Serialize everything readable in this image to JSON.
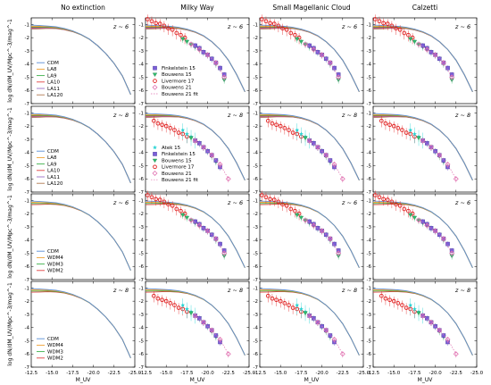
{
  "figure": {
    "columns": [
      "No extinction",
      "Milky Way",
      "Small Magellanic Cloud",
      "Calzetti"
    ],
    "row_redshift_labels": [
      "z ~ 6",
      "z ~ 8",
      "z ~ 6",
      "z ~ 8"
    ],
    "x_axis_label": "M_UV",
    "x_ticks": [
      "-12.5",
      "-15.0",
      "-17.5",
      "-20.0",
      "-22.5",
      "-25.0"
    ],
    "y_axis_label": "log dN/dM_UV/Mpc^-3/mag^-1",
    "y_ticks": [
      "-1",
      "-2",
      "-3",
      "-4",
      "-5",
      "-6",
      "-7"
    ]
  },
  "legends": {
    "lya_models": [
      "CDM",
      "LA8",
      "LA9",
      "LA10",
      "LA11",
      "LA120"
    ],
    "wdm_models": [
      "CDM",
      "WDM4",
      "WDM3",
      "WDM2"
    ],
    "obs_z6": [
      "Finkelstein 15",
      "Bouwens 15",
      "Livermore 17",
      "Bouwens 21",
      "Bouwens 21 fit"
    ],
    "obs_z8": [
      "Atek 15",
      "Finkelstein 15",
      "Bouwens 15",
      "Livermore 17",
      "Bouwens 21",
      "Bouwens 21 fit"
    ]
  },
  "colors": {
    "CDM": "#5b8fd6",
    "LA8": "#f0a030",
    "LA9": "#3cb04a",
    "LA10": "#e04040",
    "LA11": "#9b70c8",
    "LA120": "#b07850",
    "WDM4": "#f0a030",
    "WDM3": "#3cb04a",
    "WDM2": "#e04040",
    "atek": "#27d3d3",
    "finkelstein": "#7b5fd8",
    "bouwens15": "#2fbf6f",
    "livermore": "#e02020",
    "bouwens21": "#e070b0"
  },
  "chart_data": {
    "type": "line",
    "xlabel": "M_UV",
    "ylabel": "log dN/dM_UV/Mpc^-3/mag^-1",
    "xlim": [
      -12.5,
      -25.0
    ],
    "ylim": [
      -7,
      -0.5
    ],
    "model_x": [
      -12.5,
      -13.5,
      -14.5,
      -15.5,
      -16.5,
      -17.5,
      -18.5,
      -19.5,
      -20.5,
      -21.5,
      -22.5,
      -23.5,
      -24.5
    ],
    "series_no_extinction": [
      {
        "name": "CDM",
        "values": [
          -1.05,
          -1.08,
          -1.12,
          -1.18,
          -1.3,
          -1.48,
          -1.75,
          -2.1,
          -2.6,
          -3.2,
          -3.95,
          -4.9,
          -6.3
        ]
      },
      {
        "name": "LA120",
        "values": [
          -1.35,
          -1.33,
          -1.3,
          -1.32,
          -1.4,
          -1.55,
          -1.78,
          -2.12,
          -2.6,
          -3.2,
          -3.95,
          -4.9,
          -6.3
        ]
      }
    ],
    "series_dust": [
      {
        "name": "CDM",
        "values": [
          -1.05,
          -1.07,
          -1.1,
          -1.14,
          -1.22,
          -1.35,
          -1.55,
          -1.85,
          -2.3,
          -2.9,
          -3.7,
          -4.8,
          -6.1
        ]
      },
      {
        "name": "LA120",
        "values": [
          -1.35,
          -1.33,
          -1.3,
          -1.3,
          -1.32,
          -1.42,
          -1.6,
          -1.88,
          -2.3,
          -2.9,
          -3.7,
          -4.8,
          -6.1
        ]
      }
    ],
    "observations": {
      "z6": {
        "finkelstein15": {
          "x": [
            -18.5,
            -19.0,
            -19.5,
            -20.0,
            -20.5,
            -21.0,
            -21.5,
            -22.0
          ],
          "y": [
            -2.6,
            -2.8,
            -3.1,
            -3.3,
            -3.6,
            -3.9,
            -4.3,
            -4.8
          ]
        },
        "bouwens15": {
          "x": [
            -17.0,
            -17.5,
            -18.0,
            -18.5,
            -19.0,
            -19.5,
            -20.0,
            -20.5,
            -21.0,
            -22.0
          ],
          "y": [
            -2.1,
            -2.3,
            -2.5,
            -2.7,
            -2.9,
            -3.1,
            -3.3,
            -3.6,
            -4.0,
            -5.2
          ]
        },
        "livermore17": {
          "x": [
            -12.75,
            -13.25,
            -13.75,
            -14.25,
            -14.75,
            -15.25,
            -15.75,
            -16.25,
            -16.75,
            -17.25
          ],
          "y": [
            -0.6,
            -0.75,
            -0.9,
            -0.95,
            -1.1,
            -1.3,
            -1.4,
            -1.65,
            -1.8,
            -2.0
          ]
        },
        "bouwens21": {
          "x": [
            -18.0,
            -19.0,
            -20.0,
            -21.0,
            -22.0
          ],
          "y": [
            -2.5,
            -2.9,
            -3.3,
            -3.9,
            -5.0
          ]
        }
      },
      "z8": {
        "atek15": {
          "x": [
            -17.0,
            -17.5,
            -18.0,
            -18.5
          ],
          "y": [
            -2.3,
            -2.6,
            -2.8,
            -3.0
          ]
        },
        "finkelstein15": {
          "x": [
            -18.5,
            -19.0,
            -19.5,
            -20.0,
            -20.5,
            -21.0,
            -21.5
          ],
          "y": [
            -3.1,
            -3.3,
            -3.6,
            -3.9,
            -4.2,
            -4.6,
            -5.1
          ]
        },
        "bouwens15": {
          "x": [
            -18.0,
            -18.5,
            -19.0,
            -19.5,
            -20.0,
            -20.5,
            -21.0
          ],
          "y": [
            -2.9,
            -3.1,
            -3.3,
            -3.6,
            -3.9,
            -4.3,
            -4.7
          ]
        },
        "livermore17": {
          "x": [
            -13.5,
            -14.0,
            -14.5,
            -15.0,
            -15.5,
            -16.0,
            -16.5,
            -17.0,
            -17.5
          ],
          "y": [
            -1.6,
            -1.8,
            -1.9,
            -2.0,
            -2.15,
            -2.3,
            -2.5,
            -2.6,
            -2.8
          ]
        },
        "bouwens21": {
          "x": [
            -18.5,
            -19.5,
            -20.5,
            -21.5,
            -22.5
          ],
          "y": [
            -3.1,
            -3.6,
            -4.2,
            -4.9,
            -6.0
          ]
        }
      }
    }
  }
}
